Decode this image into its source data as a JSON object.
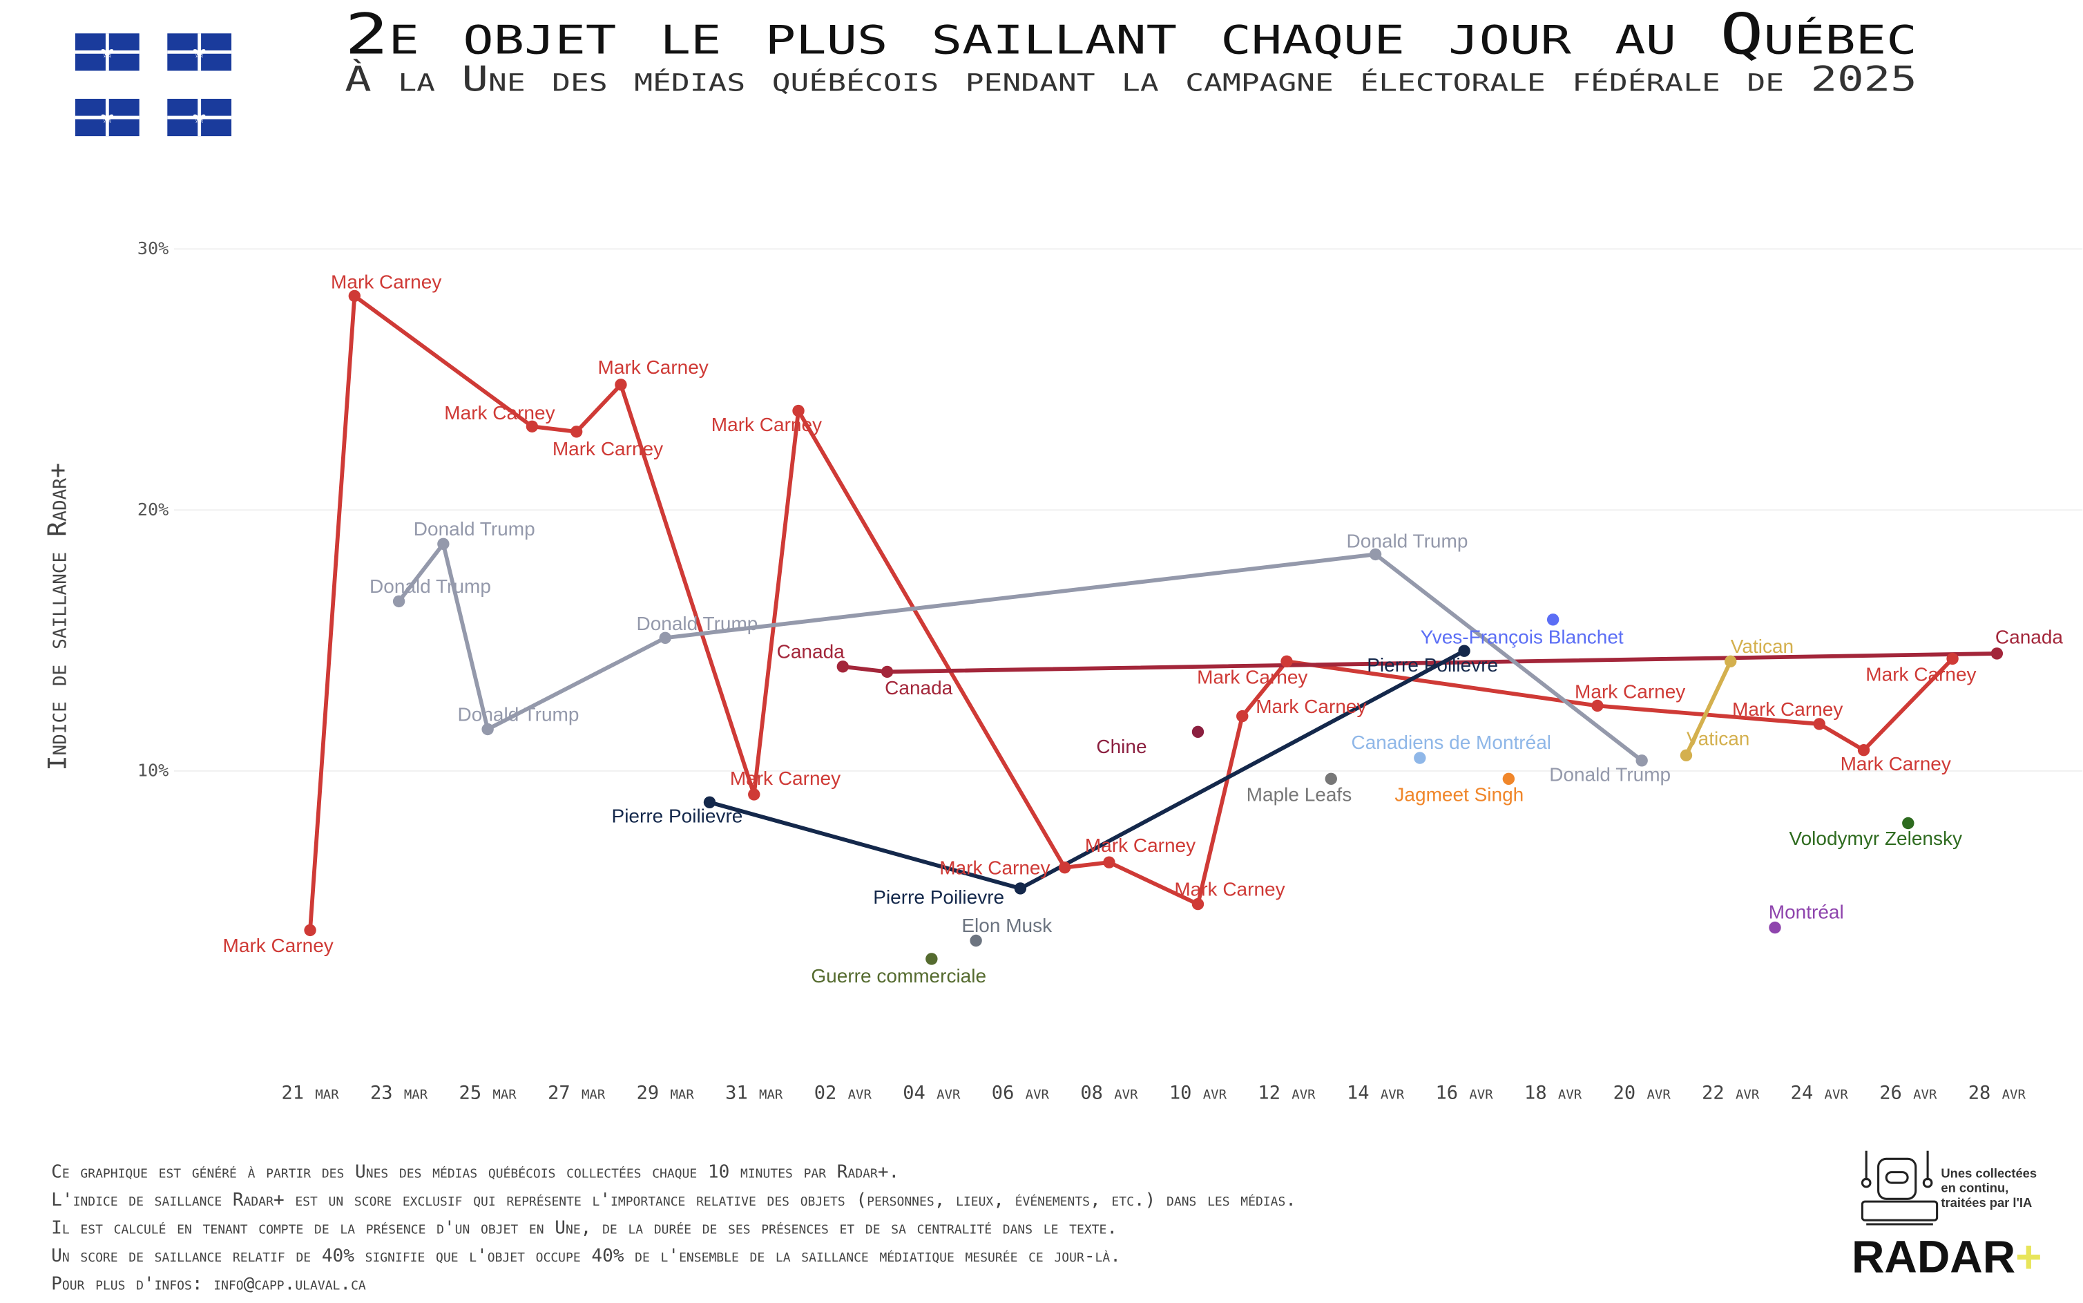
{
  "header": {
    "title": "2e objet le plus saillant chaque jour au Québec",
    "subtitle": "À la Une des médias québécois pendant la campagne électorale fédérale de 2025",
    "flag_icon": "quebec-flag-icon"
  },
  "footer": {
    "lines": [
      "Ce graphique est généré à partir des Unes des médias québécois collectées chaque 10 minutes par Radar+.",
      "L'indice de saillance Radar+ est un score exclusif qui représente l'importance relative des objets (personnes, lieux, événements, etc.) dans les médias.",
      "Il est calculé en tenant compte de la présence d'un objet en Une, de la durée de ses présences et de sa centralité dans le texte.",
      "Un score de saillance relatif de 40% signifie que l'objet occupe 40% de l'ensemble de la saillance médiatique mesurée ce jour-là.",
      "Pour plus d'infos: info@capp.ulaval.ca"
    ],
    "logo": {
      "tagline": "Unes collectées en continu, traitées par l'IA",
      "name": "RADAR",
      "plus": "+",
      "plus_color": "#e8e55a"
    }
  },
  "chart_data": {
    "type": "line",
    "title": "2e objet le plus saillant chaque jour au Québec",
    "subtitle": "À la Une des médias québécois pendant la campagne électorale fédérale de 2025",
    "xlabel": "",
    "ylabel": "Indice de saillance Radar+",
    "ylim": [
      0,
      30
    ],
    "xlim": [
      "2025-03-21",
      "2025-04-28"
    ],
    "grid": true,
    "legend": "none (direct labels)",
    "y_ticks": [
      "10%",
      "20%",
      "30%"
    ],
    "y_tick_values": [
      10,
      20,
      30
    ],
    "x_ticks": [
      "21 mar",
      "23 mar",
      "25 mar",
      "27 mar",
      "29 mar",
      "31 mar",
      "02 avr",
      "04 avr",
      "06 avr",
      "08 avr",
      "10 avr",
      "12 avr",
      "14 avr",
      "16 avr",
      "18 avr",
      "20 avr",
      "22 avr",
      "24 avr",
      "26 avr",
      "28 avr"
    ],
    "series": [
      {
        "name": "Mark Carney",
        "color": "#cf3a36",
        "points": [
          [
            "2025-03-21",
            3.9
          ],
          [
            "2025-03-22",
            28.2
          ],
          [
            "2025-03-26",
            23.2
          ],
          [
            "2025-03-27",
            23.0
          ],
          [
            "2025-03-28",
            24.8
          ],
          [
            "2025-03-31",
            9.1
          ],
          [
            "2025-04-01",
            23.8
          ],
          [
            "2025-04-07",
            6.3
          ],
          [
            "2025-04-08",
            6.5
          ],
          [
            "2025-04-10",
            4.9
          ],
          [
            "2025-04-11",
            12.1
          ],
          [
            "2025-04-12",
            14.2
          ],
          [
            "2025-04-19",
            12.5
          ],
          [
            "2025-04-24",
            11.8
          ],
          [
            "2025-04-25",
            10.8
          ],
          [
            "2025-04-27",
            14.3
          ]
        ]
      },
      {
        "name": "Canada",
        "color": "#a3263a",
        "points": [
          [
            "2025-04-02",
            14.0
          ],
          [
            "2025-04-03",
            13.8
          ],
          [
            "2025-04-28",
            14.5
          ]
        ]
      },
      {
        "name": "Donald Trump",
        "color": "#9499ab",
        "points": [
          [
            "2025-03-23",
            16.5
          ],
          [
            "2025-03-24",
            18.7
          ],
          [
            "2025-03-25",
            11.6
          ],
          [
            "2025-03-29",
            15.1
          ],
          [
            "2025-04-14",
            18.3
          ],
          [
            "2025-04-20",
            10.4
          ]
        ]
      },
      {
        "name": "Pierre Poilievre",
        "color": "#14284b",
        "points": [
          [
            "2025-03-30",
            8.8
          ],
          [
            "2025-04-06",
            5.5
          ],
          [
            "2025-04-16",
            14.6
          ]
        ]
      },
      {
        "name": "Vatican",
        "color": "#d4b04e",
        "points": [
          [
            "2025-04-21",
            10.6
          ],
          [
            "2025-04-22",
            14.2
          ]
        ]
      },
      {
        "name": "Chine",
        "color": "#8b1f3f",
        "points": [
          [
            "2025-04-10",
            11.5
          ]
        ]
      },
      {
        "name": "Elon Musk",
        "color": "#6c7480",
        "points": [
          [
            "2025-04-05",
            3.5
          ]
        ]
      },
      {
        "name": "Guerre commerciale",
        "color": "#556b2f",
        "points": [
          [
            "2025-04-04",
            2.8
          ]
        ]
      },
      {
        "name": "Maple Leafs",
        "color": "#777777",
        "points": [
          [
            "2025-04-13",
            9.7
          ]
        ]
      },
      {
        "name": "Canadiens de Montréal",
        "color": "#8fb7e8",
        "points": [
          [
            "2025-04-15",
            10.5
          ]
        ]
      },
      {
        "name": "Yves-François Blanchet",
        "color": "#5b6ef5",
        "points": [
          [
            "2025-04-18",
            15.8
          ]
        ]
      },
      {
        "name": "Jagmeet Singh",
        "color": "#f0862a",
        "points": [
          [
            "2025-04-17",
            9.7
          ]
        ]
      },
      {
        "name": "Volodymyr Zelensky",
        "color": "#2e6b1f",
        "points": [
          [
            "2025-04-26",
            8.0
          ]
        ]
      },
      {
        "name": "Montréal",
        "color": "#8e44ad",
        "points": [
          [
            "2025-04-23",
            4.0
          ]
        ]
      }
    ]
  }
}
